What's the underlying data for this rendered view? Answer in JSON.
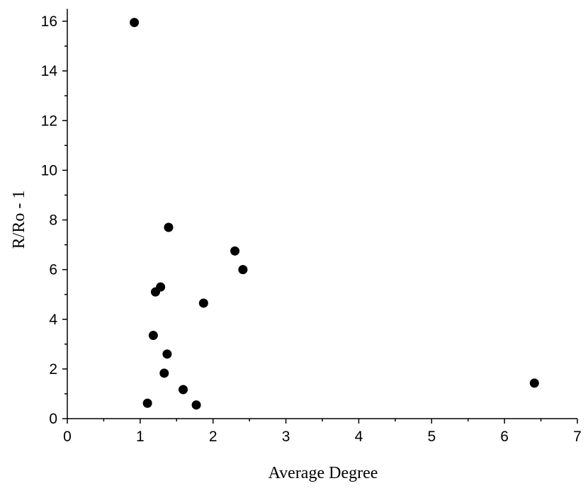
{
  "chart_data": {
    "type": "scatter",
    "xlabel": "Average Degree",
    "ylabel": "R/Ro - 1",
    "xlim": [
      0,
      7
    ],
    "ylim": [
      0,
      16.5
    ],
    "xticks": [
      0,
      1,
      2,
      3,
      4,
      5,
      6,
      7
    ],
    "yticks": [
      0,
      2,
      4,
      6,
      8,
      10,
      12,
      14,
      16
    ],
    "grid": false,
    "legend": "none",
    "marker_color": "#000000",
    "series": [
      {
        "x": [
          0.92,
          1.39,
          2.3,
          2.41,
          1.28,
          1.21,
          1.87,
          1.18,
          1.37,
          1.33,
          1.59,
          1.1,
          1.77,
          6.41
        ],
        "y": [
          15.95,
          7.7,
          6.75,
          6.0,
          5.3,
          5.1,
          4.65,
          3.35,
          2.6,
          1.83,
          1.17,
          0.62,
          0.55,
          1.43
        ]
      }
    ]
  }
}
